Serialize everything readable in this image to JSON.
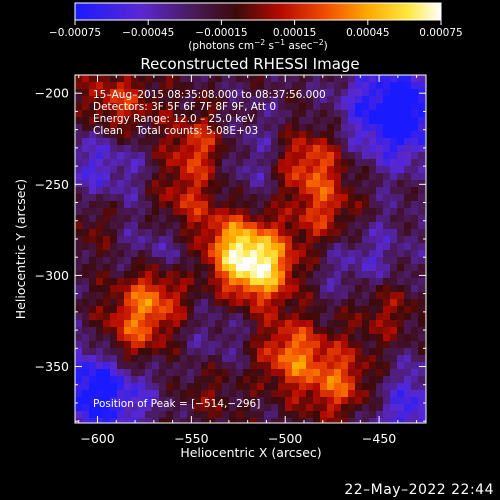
{
  "chart_data": {
    "type": "heatmap",
    "title": "Reconstructed RHESSI Image",
    "xlabel": "Heliocentric X (arcsec)",
    "ylabel": "Heliocentric Y (arcsec)",
    "xlim": [
      -612,
      -425
    ],
    "ylim": [
      -381,
      -190
    ],
    "x_ticks": [
      -600,
      -550,
      -500,
      -450
    ],
    "y_ticks": [
      -200,
      -250,
      -300,
      -350
    ],
    "x_tick_labels": [
      "−600",
      "−550",
      "−500",
      "−450"
    ],
    "y_tick_labels": [
      "−200",
      "−250",
      "−300",
      "−350"
    ],
    "colorbar": {
      "range": [
        -0.00075,
        0.00075
      ],
      "ticks": [
        -0.00075,
        -0.00045,
        -0.00015,
        0.00015,
        0.00045,
        0.00075
      ],
      "tick_labels": [
        "−0.00075",
        "−0.00045",
        "−0.00015",
        "0.00015",
        "0.00045",
        "0.00075"
      ],
      "unit_prefix": "(photons cm",
      "unit_sup1": "−2",
      "unit_mid": " s",
      "unit_sup2": "−1",
      "unit_end": " asec",
      "unit_sup3": "−2",
      "unit_close": ")",
      "colormap": "std-gamma-II (blue-purple-black-red-yellow-white)"
    },
    "annotations": [
      "15–Aug–2015 08:35:08.000 to 08:37:56.000",
      "Detectors: 3F 5F 6F 7F 8F 9F, Att 0",
      "Energy Range: 12.0 – 25.0 keV",
      "Clean    Total counts: 5.08E+03"
    ],
    "peak_label": "Position of Peak = [−514,−296]",
    "peak": [
      -514,
      -296
    ],
    "sources": [
      {
        "x": -514,
        "y": -296,
        "amp": 0.00075
      },
      {
        "x": -528,
        "y": -283,
        "amp": 0.00052
      },
      {
        "x": -545,
        "y": -230,
        "amp": 0.00048
      },
      {
        "x": -555,
        "y": -262,
        "amp": 0.00042
      },
      {
        "x": -570,
        "y": -310,
        "amp": 0.00058
      },
      {
        "x": -583,
        "y": -336,
        "amp": 0.00046
      },
      {
        "x": -488,
        "y": -238,
        "amp": 0.0005
      },
      {
        "x": -478,
        "y": -268,
        "amp": 0.0004
      },
      {
        "x": -498,
        "y": -343,
        "amp": 0.00052
      },
      {
        "x": -470,
        "y": -360,
        "amp": 0.00045
      },
      {
        "x": -448,
        "y": -318,
        "amp": 0.00028
      },
      {
        "x": -590,
        "y": -207,
        "amp": 0.0004
      },
      {
        "x": -540,
        "y": -360,
        "amp": 0.0003
      },
      {
        "x": -600,
        "y": -270,
        "amp": 0.00026
      }
    ],
    "negative_regions": [
      {
        "x": -440,
        "y": -210,
        "amp": -0.0007
      },
      {
        "x": -600,
        "y": -362,
        "amp": -0.00065
      },
      {
        "x": -565,
        "y": -285,
        "amp": -0.00035
      },
      {
        "x": -520,
        "y": -235,
        "amp": -0.0003
      },
      {
        "x": -460,
        "y": -290,
        "amp": -0.0003
      },
      {
        "x": -600,
        "y": -240,
        "amp": -0.00035
      },
      {
        "x": -535,
        "y": -345,
        "amp": -0.00025
      },
      {
        "x": -432,
        "y": -375,
        "amp": -0.0004
      }
    ]
  },
  "footer": {
    "timestamp": "22–May–2022 22:44"
  }
}
